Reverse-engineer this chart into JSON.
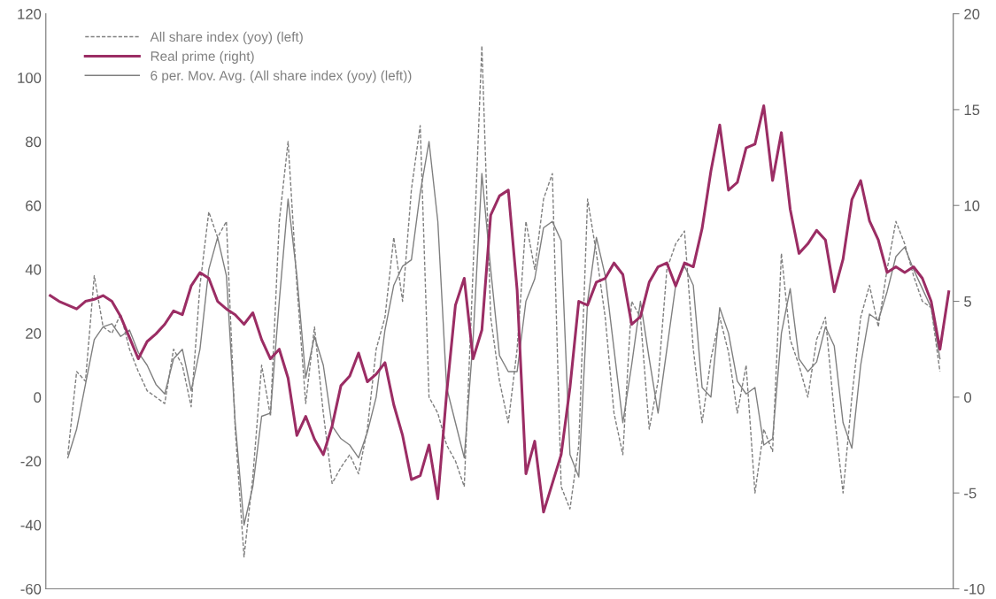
{
  "chart_data": {
    "type": "line",
    "categories": [
      null,
      null,
      null,
      null,
      null,
      null,
      null,
      null,
      null,
      null,
      null,
      null,
      null,
      null,
      null,
      null,
      null,
      null,
      null,
      null,
      null,
      null,
      null,
      null,
      null,
      null,
      null,
      null,
      null,
      null,
      null,
      null,
      null,
      null,
      null,
      null,
      null,
      null,
      null,
      null,
      null,
      null,
      null,
      null,
      null,
      null,
      null,
      null,
      null,
      null,
      null,
      null,
      null,
      null,
      null,
      null,
      null,
      null,
      null,
      null,
      null,
      null,
      null,
      null,
      null,
      null,
      null,
      null,
      null,
      null,
      null,
      null,
      null,
      null,
      null,
      null,
      null,
      null,
      null,
      null,
      null,
      null,
      null,
      null,
      null,
      null,
      null,
      null,
      null,
      null,
      null,
      null,
      null,
      null,
      null,
      null,
      null,
      null,
      null,
      null,
      null,
      null,
      null
    ],
    "series": [
      {
        "name": "All share index (yoy) (left)",
        "color": "#7f7f7f",
        "line_style": "dashed",
        "axis": "y",
        "values": [
          null,
          null,
          -18,
          8,
          5,
          38,
          22,
          20,
          26,
          15,
          8,
          2,
          0,
          -2,
          15,
          10,
          -3,
          35,
          58,
          50,
          55,
          -10,
          -50,
          -25,
          10,
          -6,
          55,
          80,
          35,
          -2,
          22,
          -5,
          -27,
          -22,
          -18,
          -24,
          -10,
          15,
          25,
          50,
          30,
          65,
          85,
          0,
          -5,
          -15,
          -20,
          -28,
          40,
          110,
          25,
          5,
          -8,
          15,
          55,
          40,
          62,
          70,
          -28,
          -35,
          -15,
          62,
          45,
          25,
          -5,
          -18,
          30,
          25,
          -10,
          5,
          40,
          48,
          52,
          15,
          -8,
          12,
          25,
          14,
          -5,
          10,
          -30,
          -10,
          -17,
          45,
          18,
          10,
          0,
          18,
          25,
          -5,
          -30,
          0,
          25,
          35,
          22,
          40,
          55,
          48,
          38,
          30,
          28,
          8,
          null
        ]
      },
      {
        "name": "Real prime (right)",
        "color": "#9b2d64",
        "line_style": "solid",
        "axis": "y2",
        "values": [
          5.3,
          5.0,
          4.8,
          4.6,
          5.0,
          5.1,
          5.3,
          5.0,
          4.2,
          3.1,
          2.0,
          2.9,
          3.3,
          3.8,
          4.5,
          4.3,
          5.8,
          6.5,
          6.2,
          5.0,
          4.6,
          4.3,
          3.8,
          4.4,
          3.0,
          2.0,
          2.5,
          1.0,
          -2.0,
          -1.0,
          -2.2,
          -3.0,
          -1.5,
          0.6,
          1.1,
          2.3,
          0.8,
          1.2,
          1.8,
          -0.4,
          -2.0,
          -4.3,
          -4.1,
          -2.5,
          -5.3,
          0.2,
          4.8,
          6.2,
          2.0,
          3.5,
          9.5,
          10.5,
          10.8,
          5.6,
          -4.0,
          -2.3,
          -6.0,
          -4.5,
          -3.0,
          0.5,
          5.0,
          4.8,
          6.0,
          6.2,
          7.0,
          6.4,
          3.8,
          4.2,
          6.0,
          6.8,
          7.0,
          5.8,
          7.0,
          6.8,
          8.8,
          11.8,
          14.2,
          10.8,
          11.2,
          13.0,
          13.2,
          15.2,
          11.3,
          13.8,
          9.8,
          7.5,
          8.0,
          8.7,
          8.2,
          5.5,
          7.2,
          10.3,
          11.3,
          9.2,
          8.2,
          6.5,
          6.8,
          6.5,
          6.8,
          6.2,
          5.0,
          2.5,
          5.5
        ]
      },
      {
        "name": "6 per. Mov. Avg. (All share index (yoy) (left))",
        "color": "#7f7f7f",
        "line_style": "solid",
        "axis": "y",
        "values": [
          null,
          null,
          -19,
          -10,
          4,
          18,
          22,
          23,
          19,
          21,
          14,
          10,
          4,
          1,
          12,
          15,
          2,
          15,
          40,
          50,
          38,
          -8,
          -40,
          -28,
          -6,
          -5,
          30,
          62,
          38,
          6,
          19,
          10,
          -9,
          -13,
          -15,
          -19,
          -11,
          0,
          21,
          35,
          41,
          43,
          64,
          80,
          55,
          3,
          -8,
          -19,
          18,
          70,
          40,
          13,
          8,
          8,
          30,
          37,
          53,
          55,
          49,
          -18,
          -25,
          30,
          50,
          38,
          15,
          -8,
          10,
          30,
          12,
          -5,
          15,
          35,
          41,
          35,
          3,
          0,
          28,
          20,
          5,
          1,
          3,
          -15,
          -13,
          20,
          34,
          12,
          8,
          11,
          22,
          16,
          -8,
          -16,
          10,
          26,
          24,
          33,
          44,
          47,
          40,
          34,
          28,
          12,
          null
        ]
      }
    ],
    "ylim": [
      -60,
      120
    ],
    "yticks": [
      -60,
      -40,
      -20,
      0,
      20,
      40,
      60,
      80,
      100,
      120
    ],
    "y2lim": [
      -10,
      20
    ],
    "y2ticks": [
      -10,
      -5,
      0,
      5,
      10,
      15,
      20
    ],
    "legend": "top left",
    "grid": false,
    "tick_labels": "y"
  }
}
